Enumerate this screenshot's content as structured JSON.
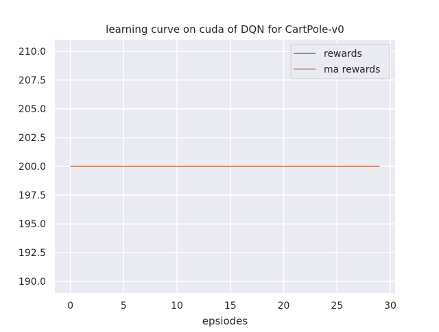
{
  "chart_data": {
    "type": "line",
    "title": "learning curve on cuda of DQN for CartPole-v0",
    "xlabel": "epsiodes",
    "ylabel": "",
    "xlim": [
      -1.45,
      30.45
    ],
    "ylim": [
      189.0,
      211.0
    ],
    "x_ticks": [
      0,
      5,
      10,
      15,
      20,
      25,
      30
    ],
    "y_ticks": [
      190.0,
      192.5,
      195.0,
      197.5,
      200.0,
      202.5,
      205.0,
      207.5,
      210.0
    ],
    "x_tick_labels": [
      "0",
      "5",
      "10",
      "15",
      "20",
      "25",
      "30"
    ],
    "y_tick_labels": [
      "190.0",
      "192.5",
      "195.0",
      "197.5",
      "200.0",
      "202.5",
      "205.0",
      "207.5",
      "210.0"
    ],
    "grid": true,
    "legend_position": "upper right",
    "x": [
      0,
      1,
      2,
      3,
      4,
      5,
      6,
      7,
      8,
      9,
      10,
      11,
      12,
      13,
      14,
      15,
      16,
      17,
      18,
      19,
      20,
      21,
      22,
      23,
      24,
      25,
      26,
      27,
      28,
      29
    ],
    "series": [
      {
        "name": "rewards",
        "color": "#4c72b0",
        "values": [
          200,
          200,
          200,
          200,
          200,
          200,
          200,
          200,
          200,
          200,
          200,
          200,
          200,
          200,
          200,
          200,
          200,
          200,
          200,
          200,
          200,
          200,
          200,
          200,
          200,
          200,
          200,
          200,
          200,
          200
        ]
      },
      {
        "name": "ma rewards",
        "color": "#dd8452",
        "values": [
          200,
          200,
          200,
          200,
          200,
          200,
          200,
          200,
          200,
          200,
          200,
          200,
          200,
          200,
          200,
          200,
          200,
          200,
          200,
          200,
          200,
          200,
          200,
          200,
          200,
          200,
          200,
          200,
          200,
          200
        ]
      }
    ],
    "colors": {
      "plot_background": "#eaeaf2",
      "grid": "#ffffff"
    }
  }
}
